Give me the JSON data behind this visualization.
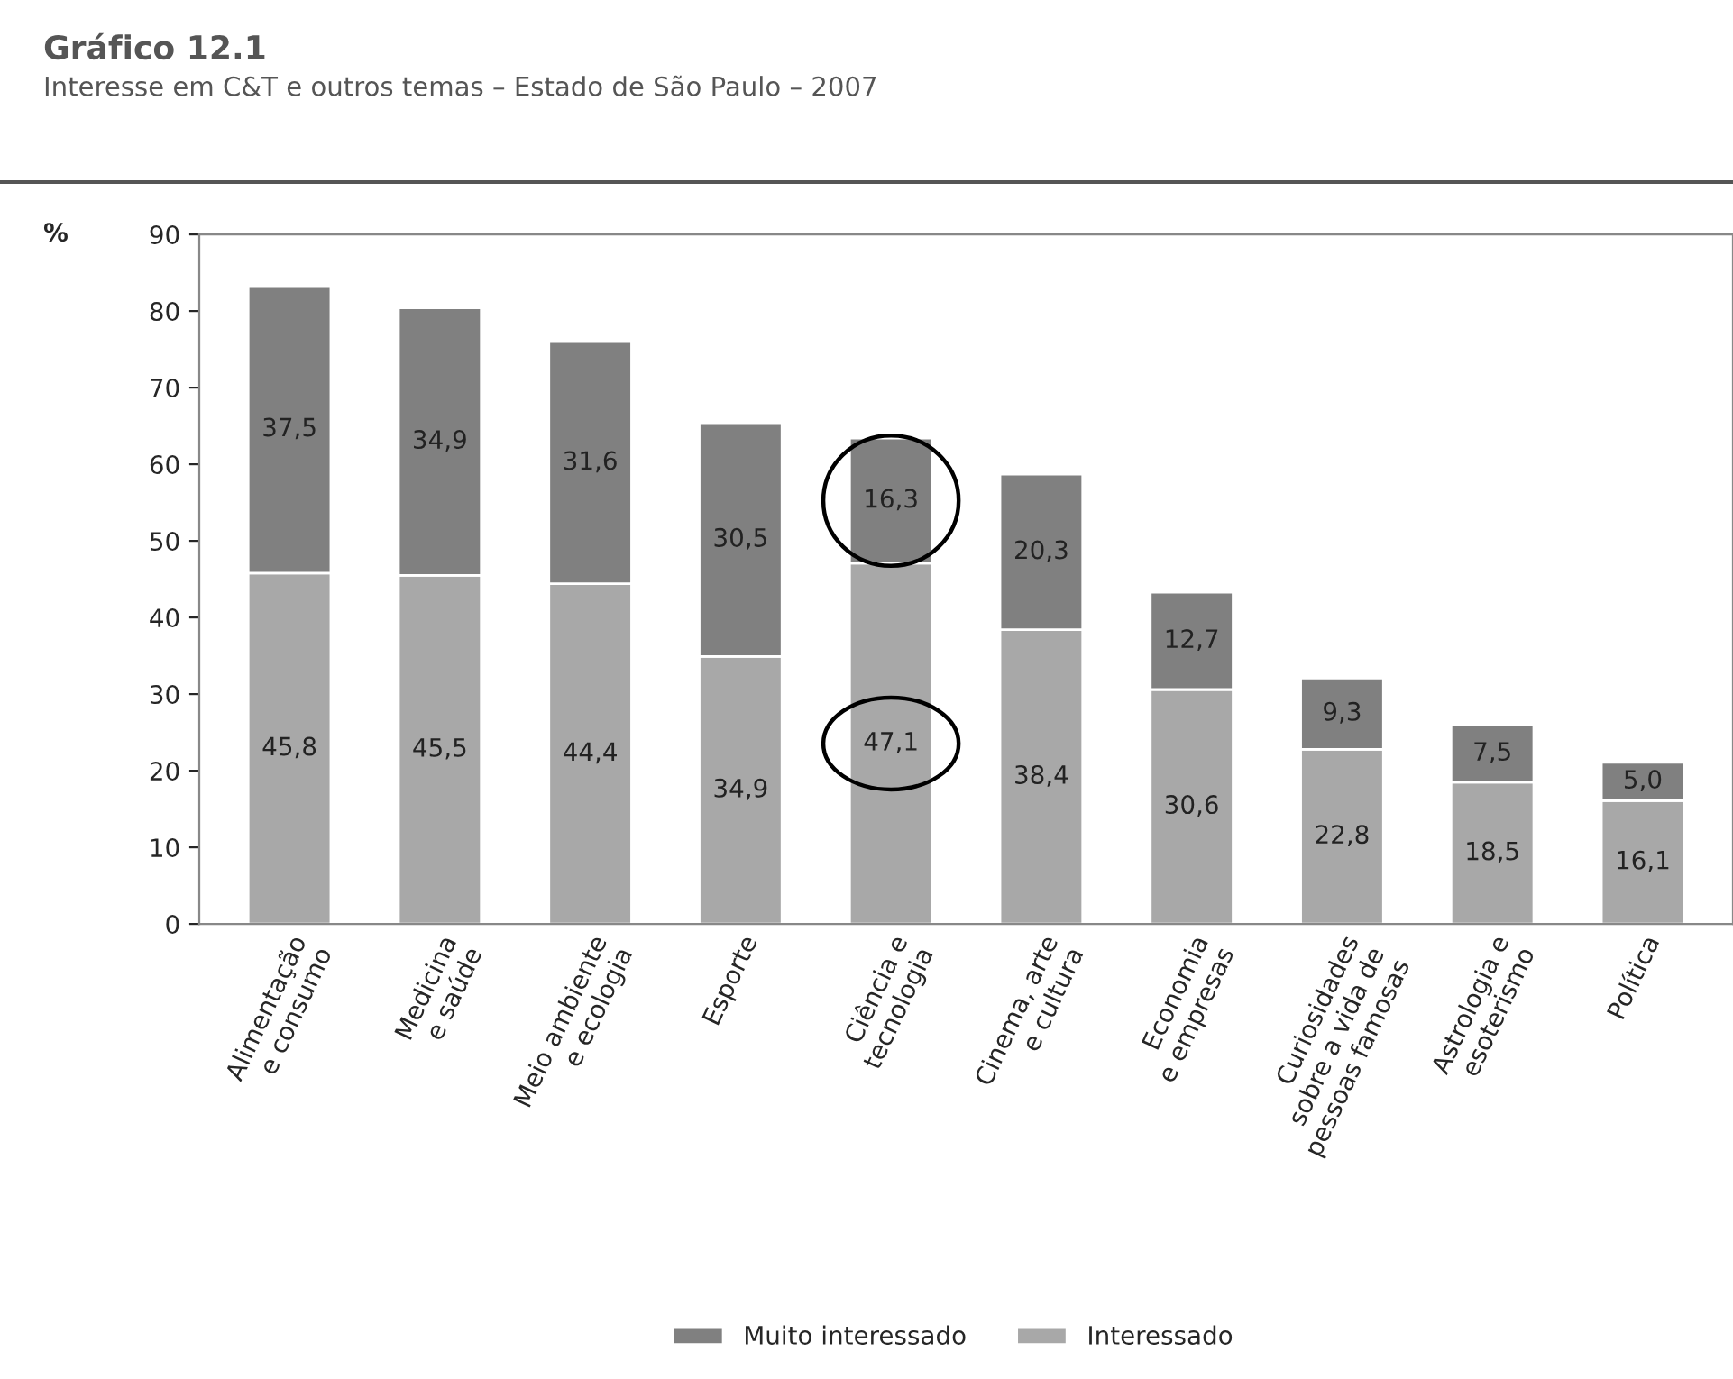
{
  "chart_data": {
    "type": "bar",
    "stacked": true,
    "title": "Gráfico 12.1",
    "subtitle": "Interesse em C&T e outros temas – Estado de São Paulo – 2007",
    "ylabel": "%",
    "categories": [
      "Alimentação\ne consumo",
      "Medicina\ne saúde",
      "Meio ambiente\ne ecologia",
      "Esporte",
      "Ciência e\ntecnologia",
      "Cinema, arte\ne cultura",
      "Economia\ne empresas",
      "Curiosidades\nsobre a vida de\npessoas famosas",
      "Astrologia e\nesoterismo",
      "Política"
    ],
    "series": [
      {
        "name": "Interessado",
        "color": "#a8a8a8",
        "values": [
          45.8,
          45.5,
          44.4,
          34.9,
          47.1,
          38.4,
          30.6,
          22.8,
          18.5,
          16.1
        ],
        "value_labels": [
          "45,8",
          "45,5",
          "44,4",
          "34,9",
          "47,1",
          "38,4",
          "30,6",
          "22,8",
          "18,5",
          "16,1"
        ]
      },
      {
        "name": "Muito interessado",
        "color": "#808080",
        "values": [
          37.5,
          34.9,
          31.6,
          30.5,
          16.3,
          20.3,
          12.7,
          9.3,
          7.5,
          5.0
        ],
        "value_labels": [
          "37,5",
          "34,9",
          "31,6",
          "30,5",
          "16,3",
          "20,3",
          "12,7",
          "9,3",
          "7,5",
          "5,0"
        ]
      }
    ],
    "ylim": [
      0,
      90
    ],
    "yticks": [
      0,
      10,
      20,
      30,
      40,
      50,
      60,
      70,
      80,
      90
    ],
    "grid": false,
    "legend": "bottom"
  }
}
